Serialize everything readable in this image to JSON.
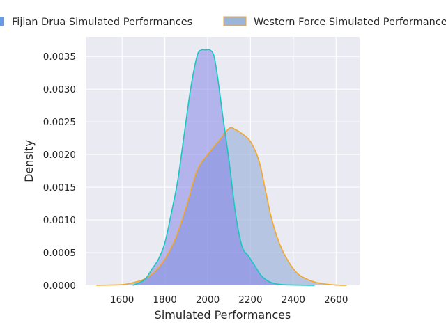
{
  "chart_data": {
    "type": "area",
    "title": "",
    "xlabel": "Simulated Performances",
    "ylabel": "Density",
    "xlim": [
      1430,
      2710
    ],
    "ylim": [
      0,
      0.0038
    ],
    "x_ticks": [
      1600,
      1800,
      2000,
      2200,
      2400,
      2600
    ],
    "x_tick_labels": [
      "1600",
      "1800",
      "2000",
      "2200",
      "2400",
      "2600"
    ],
    "y_ticks": [
      0,
      0.0005,
      0.001,
      0.0015,
      0.002,
      0.0025,
      0.003,
      0.0035
    ],
    "y_tick_labels": [
      "0.0000",
      "0.0005",
      "0.0010",
      "0.0015",
      "0.0020",
      "0.0025",
      "0.0030",
      "0.0035"
    ],
    "grid": true,
    "legend_position": "top",
    "background_color": "#eaeaf2",
    "series": [
      {
        "name": "Fijian Drua Simulated Performances",
        "fill_color": "#7b7de6",
        "fill_opacity": 0.5,
        "line_color": "#16c7c0",
        "legend_color": "#6a9be2",
        "x": [
          1650,
          1680,
          1710,
          1740,
          1770,
          1800,
          1830,
          1860,
          1890,
          1920,
          1950,
          1970,
          1990,
          2010,
          2030,
          2050,
          2070,
          2100,
          2130,
          2160,
          2190,
          2220,
          2250,
          2280,
          2310,
          2350,
          2400,
          2450,
          2500
        ],
        "y": [
          0,
          4e-05,
          0.0001,
          0.00025,
          0.0004,
          0.00065,
          0.0011,
          0.0016,
          0.0023,
          0.003,
          0.0035,
          0.0036,
          0.0036,
          0.0036,
          0.0035,
          0.0031,
          0.0026,
          0.0019,
          0.0011,
          0.0006,
          0.00045,
          0.0003,
          0.00015,
          7e-05,
          3e-05,
          1e-05,
          5e-06,
          2e-06,
          0
        ]
      },
      {
        "name": "Western Force Simulated Performances",
        "fill_color": "#9ab0d8",
        "fill_opacity": 0.65,
        "line_color": "#f5a623",
        "legend_color": "#9db4da",
        "x": [
          1480,
          1550,
          1600,
          1650,
          1700,
          1750,
          1800,
          1850,
          1900,
          1950,
          2000,
          2050,
          2100,
          2130,
          2160,
          2200,
          2240,
          2270,
          2300,
          2340,
          2380,
          2420,
          2460,
          2500,
          2550,
          2600,
          2650
        ],
        "y": [
          0,
          5e-06,
          1e-05,
          4e-05,
          9e-05,
          0.0002,
          0.0004,
          0.00072,
          0.0012,
          0.00175,
          0.002,
          0.0022,
          0.0024,
          0.00238,
          0.00232,
          0.0022,
          0.0019,
          0.00145,
          0.001,
          0.0006,
          0.00035,
          0.00018,
          0.0001,
          5e-05,
          2e-05,
          5e-06,
          0
        ]
      }
    ]
  }
}
